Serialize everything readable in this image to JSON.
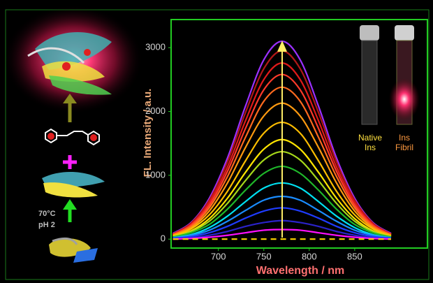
{
  "chart_data": {
    "type": "line",
    "x_label": "Wavelength / nm",
    "y_label": "FL. Intensity / a.u.",
    "x": [
      650,
      670,
      690,
      710,
      730,
      750,
      770,
      790,
      810,
      830,
      850,
      870,
      890
    ],
    "series": [
      {
        "color": "#9b30ff",
        "values": [
          90,
          260,
          640,
          1270,
          2090,
          2810,
          3100,
          2810,
          2090,
          1270,
          640,
          260,
          90
        ]
      },
      {
        "color": "#b01818",
        "values": [
          80,
          250,
          610,
          1210,
          1990,
          2670,
          2950,
          2670,
          1990,
          1210,
          610,
          250,
          80
        ]
      },
      {
        "color": "#e01a1a",
        "values": [
          80,
          230,
          570,
          1130,
          1860,
          2500,
          2760,
          2500,
          1860,
          1130,
          570,
          230,
          80
        ]
      },
      {
        "color": "#ff3a2a",
        "values": [
          70,
          220,
          530,
          1060,
          1740,
          2340,
          2580,
          2340,
          1740,
          1060,
          530,
          220,
          70
        ]
      },
      {
        "color": "#ff6a1e",
        "values": [
          70,
          200,
          490,
          980,
          1600,
          2160,
          2380,
          2160,
          1600,
          980,
          490,
          200,
          70
        ]
      },
      {
        "color": "#ff9a10",
        "values": [
          60,
          180,
          440,
          880,
          1440,
          1930,
          2130,
          1930,
          1440,
          880,
          440,
          180,
          60
        ]
      },
      {
        "color": "#ffbe00",
        "values": [
          50,
          160,
          380,
          750,
          1230,
          1660,
          1830,
          1660,
          1230,
          750,
          380,
          160,
          50
        ]
      },
      {
        "color": "#ffe400",
        "values": [
          40,
          130,
          320,
          640,
          1050,
          1410,
          1560,
          1410,
          1050,
          640,
          320,
          130,
          40
        ]
      },
      {
        "color": "#a6d81a",
        "values": [
          40,
          120,
          280,
          560,
          920,
          1240,
          1370,
          1240,
          920,
          560,
          280,
          120,
          40
        ]
      },
      {
        "color": "#1fb82a",
        "values": [
          30,
          100,
          230,
          470,
          770,
          1030,
          1140,
          1030,
          770,
          470,
          230,
          100,
          30
        ]
      },
      {
        "color": "#00e0f0",
        "values": [
          20,
          70,
          180,
          360,
          590,
          800,
          880,
          800,
          590,
          360,
          180,
          70,
          20
        ]
      },
      {
        "color": "#1a8cff",
        "values": [
          20,
          60,
          140,
          280,
          450,
          610,
          670,
          610,
          450,
          280,
          140,
          60,
          20
        ]
      },
      {
        "color": "#1f3cff",
        "values": [
          10,
          40,
          100,
          200,
          330,
          440,
          490,
          440,
          330,
          200,
          100,
          40,
          10
        ]
      },
      {
        "color": "#2a22c8",
        "values": [
          10,
          20,
          60,
          120,
          200,
          260,
          290,
          260,
          200,
          120,
          60,
          20,
          10
        ]
      },
      {
        "color": "#ff10ff",
        "values": [
          0,
          10,
          30,
          60,
          100,
          140,
          150,
          140,
          100,
          60,
          30,
          10,
          0
        ]
      },
      {
        "color": "#ffd700",
        "style": "dashed",
        "values": [
          0,
          0,
          0,
          0,
          0,
          0,
          0,
          0,
          0,
          0,
          0,
          0,
          0
        ]
      }
    ],
    "xlim": [
      648,
      930
    ],
    "ylim": [
      -140,
      3440
    ],
    "xticks": [
      700,
      750,
      800,
      850
    ],
    "yticks": [
      0,
      1000,
      2000,
      3000
    ],
    "annotations": [
      "Native Ins",
      "Ins Fibril"
    ]
  },
  "left_panel": {
    "labels": [
      "70°C",
      "pH 2"
    ]
  }
}
